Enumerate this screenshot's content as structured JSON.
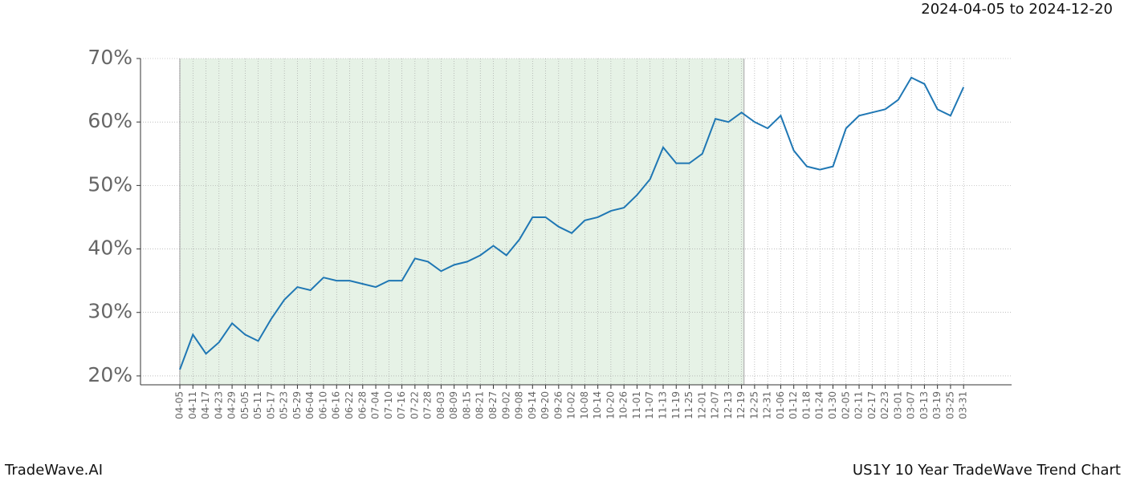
{
  "chart_data": {
    "type": "line",
    "date_range": "2024-04-05 to 2024-12-20",
    "brand": "TradeWave.AI",
    "title": "US1Y 10 Year TradeWave Trend Chart",
    "categories": [
      "04-05",
      "04-11",
      "04-17",
      "04-23",
      "04-29",
      "05-05",
      "05-11",
      "05-17",
      "05-23",
      "05-29",
      "06-04",
      "06-10",
      "06-16",
      "06-22",
      "06-28",
      "07-04",
      "07-10",
      "07-16",
      "07-22",
      "07-28",
      "08-03",
      "08-09",
      "08-15",
      "08-21",
      "08-27",
      "09-02",
      "09-08",
      "09-14",
      "09-20",
      "09-26",
      "10-02",
      "10-08",
      "10-14",
      "10-20",
      "10-26",
      "11-01",
      "11-07",
      "11-13",
      "11-19",
      "11-25",
      "12-01",
      "12-07",
      "12-13",
      "12-19",
      "12-25",
      "12-31",
      "01-06",
      "01-12",
      "01-18",
      "01-24",
      "01-30",
      "02-05",
      "02-11",
      "02-17",
      "02-23",
      "03-01",
      "03-07",
      "03-13",
      "03-19",
      "03-25",
      "03-31"
    ],
    "series": [
      {
        "color": "#1f77b4",
        "values": [
          21,
          26.5,
          23.5,
          25.3,
          28.3,
          26.5,
          25.5,
          29,
          32,
          34,
          33.5,
          35.5,
          35,
          35,
          34.5,
          34,
          35,
          35,
          38.5,
          38,
          36.5,
          37.5,
          38,
          39,
          40.5,
          39,
          41.5,
          45,
          45,
          43.5,
          42.5,
          44.5,
          45,
          46,
          46.5,
          48.5,
          51,
          56,
          53.5,
          53.5,
          55,
          60.5,
          60,
          61.5,
          60,
          59,
          61,
          55.5,
          53,
          52.5,
          53,
          59,
          61,
          61.5,
          62,
          63.5,
          67,
          66,
          62,
          61,
          65.5
        ]
      }
    ],
    "highlight": {
      "from": "04-05",
      "to": "12-19",
      "color": "#e6f2e6"
    },
    "ylim": [
      18.6,
      70
    ],
    "yticks": [
      {
        "value": 20,
        "label": "20%"
      },
      {
        "value": 30,
        "label": "30%"
      },
      {
        "value": 40,
        "label": "40%"
      },
      {
        "value": 50,
        "label": "50%"
      },
      {
        "value": 60,
        "label": "60%"
      },
      {
        "value": 70,
        "label": "70%"
      }
    ],
    "grid": true
  }
}
